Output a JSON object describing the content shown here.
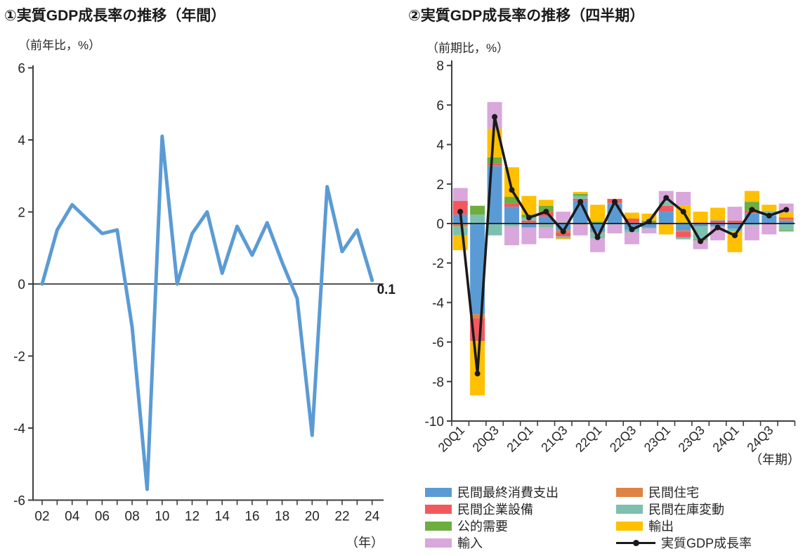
{
  "chart_data": [
    {
      "id": "annual",
      "type": "line",
      "title": "①実質GDP成長率の推移（年間）",
      "unit_label": "（前年比，%）",
      "xlabel": "（年）",
      "ylim": [
        -6,
        6
      ],
      "yticks": [
        6,
        4,
        2,
        0,
        -2,
        -4,
        -6
      ],
      "x": [
        2002,
        2003,
        2004,
        2005,
        2006,
        2007,
        2008,
        2009,
        2010,
        2011,
        2012,
        2013,
        2014,
        2015,
        2016,
        2017,
        2018,
        2019,
        2020,
        2021,
        2022,
        2023,
        2024
      ],
      "xtick_labels": [
        "02",
        "04",
        "06",
        "08",
        "10",
        "12",
        "14",
        "16",
        "18",
        "20",
        "22",
        "24"
      ],
      "values": [
        0.0,
        1.5,
        2.2,
        1.8,
        1.4,
        1.5,
        -1.2,
        -5.7,
        4.1,
        0.0,
        1.4,
        2.0,
        0.3,
        1.6,
        0.8,
        1.7,
        0.6,
        -0.4,
        -4.2,
        2.7,
        0.9,
        1.5,
        0.1
      ],
      "last_value_label": "0.1",
      "line_color": "#5B9BD5",
      "grid": "off",
      "legend": "none"
    },
    {
      "id": "quarterly",
      "type": "stacked-bar-line",
      "title": "②実質GDP成長率の推移（四半期）",
      "unit_label": "（前期比，%）",
      "xlabel": "（年期）",
      "ylim": [
        -10,
        8
      ],
      "yticks": [
        8,
        6,
        4,
        2,
        0,
        -2,
        -4,
        -6,
        -8,
        -10
      ],
      "categories": [
        "20Q1",
        "20Q2",
        "20Q3",
        "20Q4",
        "21Q1",
        "21Q2",
        "21Q3",
        "21Q4",
        "22Q1",
        "22Q2",
        "22Q3",
        "22Q4",
        "23Q1",
        "23Q2",
        "23Q3",
        "23Q4",
        "24Q1",
        "24Q2",
        "24Q3",
        "24Q4"
      ],
      "xtick_labels_shown": [
        "20Q1",
        "20Q3",
        "21Q1",
        "21Q3",
        "22Q1",
        "22Q3",
        "23Q1",
        "23Q3",
        "24Q1",
        "24Q3"
      ],
      "series": [
        {
          "name": "民間最終消費支出",
          "color": "#5B9BD5",
          "values": [
            0.45,
            -4.6,
            2.9,
            0.85,
            -0.2,
            0.35,
            -0.35,
            1.15,
            -0.4,
            1.0,
            -0.3,
            -0.2,
            0.6,
            -0.35,
            -0.15,
            -0.15,
            -0.25,
            0.5,
            0.4,
            0.15
          ]
        },
        {
          "name": "民間住宅",
          "color": "#DE8344",
          "values": [
            -0.15,
            -0.2,
            0.05,
            0.0,
            0.05,
            -0.05,
            -0.1,
            -0.05,
            0.0,
            0.05,
            0.05,
            0.0,
            -0.05,
            -0.05,
            0.0,
            0.0,
            0.05,
            0.05,
            0.0,
            0.08
          ]
        },
        {
          "name": "民間企業設備",
          "color": "#F2595E",
          "values": [
            0.7,
            -1.15,
            0.1,
            0.15,
            0.1,
            0.25,
            -0.2,
            0.1,
            -0.05,
            0.2,
            0.2,
            0.05,
            0.3,
            -0.3,
            0.05,
            0.15,
            0.1,
            0.1,
            -0.05,
            0.08
          ]
        },
        {
          "name": "民間在庫変動",
          "color": "#7EC0B0",
          "values": [
            -0.45,
            0.45,
            -0.6,
            -0.15,
            0.15,
            -0.15,
            -0.1,
            0.15,
            -0.3,
            -0.05,
            -0.15,
            -0.05,
            0.2,
            -0.1,
            -0.65,
            0.05,
            -0.15,
            -0.1,
            0.25,
            -0.35
          ]
        },
        {
          "name": "公的需要",
          "color": "#6EAD3F",
          "values": [
            0.0,
            0.45,
            0.3,
            0.35,
            0.15,
            0.3,
            0.05,
            0.1,
            0.1,
            0.0,
            0.0,
            0.1,
            0.0,
            0.05,
            -0.05,
            0.0,
            0.0,
            0.45,
            0.0,
            -0.05
          ]
        },
        {
          "name": "輸出",
          "color": "#FFC000",
          "values": [
            -0.75,
            -2.75,
            1.45,
            1.5,
            0.95,
            0.3,
            -0.05,
            0.1,
            0.85,
            0.0,
            0.3,
            0.35,
            -0.5,
            0.85,
            0.55,
            0.6,
            -1.05,
            0.55,
            0.3,
            0.25
          ]
        },
        {
          "name": "輸入",
          "color": "#D9A7DC",
          "values": [
            0.65,
            0.0,
            1.35,
            -0.95,
            -0.85,
            -0.55,
            0.55,
            -0.55,
            -0.7,
            -0.45,
            -0.6,
            -0.25,
            0.55,
            0.7,
            -0.45,
            -0.7,
            0.7,
            -0.75,
            -0.5,
            0.45
          ]
        }
      ],
      "line_series": {
        "name": "実質GDP成長率",
        "color": "#1a1a1a",
        "values": [
          0.6,
          -7.6,
          5.4,
          1.7,
          0.3,
          0.6,
          -0.4,
          1.1,
          -0.7,
          1.1,
          -0.3,
          0.1,
          1.3,
          0.6,
          -0.9,
          -0.2,
          -0.6,
          0.7,
          0.4,
          0.7
        ]
      },
      "grid": "off",
      "legend_position": "bottom"
    }
  ]
}
